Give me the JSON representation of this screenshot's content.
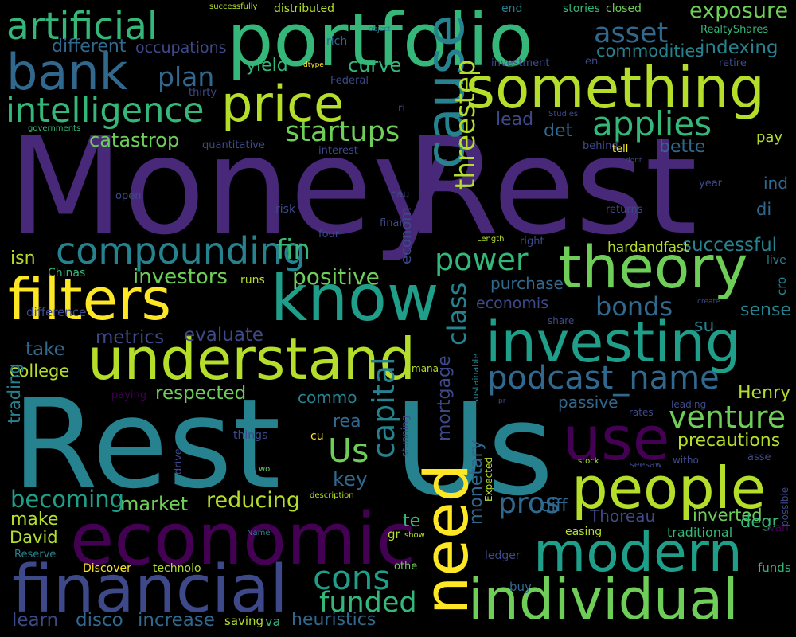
{
  "background": "#000000",
  "palette": [
    "#440154",
    "#482878",
    "#3e4989",
    "#31688e",
    "#26828e",
    "#1f9e89",
    "#35b779",
    "#6ece58",
    "#b5de2b",
    "#fde725"
  ],
  "words": [
    {
      "text": "Money",
      "c": "#482878"
    },
    {
      "text": "Rest",
      "c": "#482878"
    },
    {
      "text": "Rest",
      "c": "#26828e"
    },
    {
      "text": "Us",
      "c": "#26828e"
    },
    {
      "text": "portfolio",
      "c": "#35b779"
    },
    {
      "text": "economic",
      "c": "#440154"
    },
    {
      "text": "financial",
      "c": "#3e4989"
    },
    {
      "text": "investing",
      "c": "#1f9e89"
    },
    {
      "text": "understand",
      "c": "#b5de2b"
    },
    {
      "text": "know",
      "c": "#1f9e89"
    },
    {
      "text": "filters",
      "c": "#fde725"
    },
    {
      "text": "theory",
      "c": "#6ece58"
    },
    {
      "text": "individual",
      "c": "#6ece58"
    },
    {
      "text": "people",
      "c": "#b5de2b"
    },
    {
      "text": "modern",
      "c": "#1f9e89"
    },
    {
      "text": "use",
      "c": "#440154"
    },
    {
      "text": "something",
      "c": "#b5de2b"
    },
    {
      "text": "price",
      "c": "#b5de2b"
    },
    {
      "text": "bank",
      "c": "#31688e"
    },
    {
      "text": "artificial",
      "c": "#35b779"
    },
    {
      "text": "intelligence",
      "c": "#35b779"
    },
    {
      "text": "compounding",
      "c": "#26828e"
    },
    {
      "text": "cause",
      "c": "#26828e"
    },
    {
      "text": "need",
      "c": "#fde725"
    },
    {
      "text": "podcast_name",
      "c": "#31688e"
    },
    {
      "text": "applies",
      "c": "#35b779"
    },
    {
      "text": "asset",
      "c": "#31688e"
    },
    {
      "text": "exposure",
      "c": "#6ece58"
    },
    {
      "text": "capital",
      "c": "#26828e"
    },
    {
      "text": "power",
      "c": "#35b779"
    },
    {
      "text": "venture",
      "c": "#6ece58"
    },
    {
      "text": "cons",
      "c": "#1f9e89"
    },
    {
      "text": "pros",
      "c": "#31688e"
    },
    {
      "text": "bonds",
      "c": "#31688e"
    },
    {
      "text": "startups",
      "c": "#6ece58"
    },
    {
      "text": "threestep",
      "c": "#b5de2b"
    },
    {
      "text": "class",
      "c": "#26828e"
    },
    {
      "text": "funded",
      "c": "#35b779"
    },
    {
      "text": "Us",
      "c": "#6ece58"
    },
    {
      "text": "fin",
      "c": "#35b779"
    },
    {
      "text": "positive",
      "c": "#6ece58"
    },
    {
      "text": "investors",
      "c": "#6ece58"
    },
    {
      "text": "plan",
      "c": "#31688e"
    },
    {
      "text": "curve",
      "c": "#35b779"
    },
    {
      "text": "yield",
      "c": "#35b779"
    },
    {
      "text": "catastrop",
      "c": "#6ece58"
    },
    {
      "text": "lead",
      "c": "#3e4989"
    },
    {
      "text": "det",
      "c": "#31688e"
    },
    {
      "text": "bette",
      "c": "#31688e"
    },
    {
      "text": "indexing",
      "c": "#26828e"
    },
    {
      "text": "commodities",
      "c": "#26828e"
    },
    {
      "text": "occupations",
      "c": "#3e4989"
    },
    {
      "text": "different",
      "c": "#31688e"
    },
    {
      "text": "successful",
      "c": "#26828e"
    },
    {
      "text": "purchase",
      "c": "#31688e"
    },
    {
      "text": "economis",
      "c": "#3e4989"
    },
    {
      "text": "sense",
      "c": "#26828e"
    },
    {
      "text": "Henry",
      "c": "#b5de2b"
    },
    {
      "text": "precautions",
      "c": "#b5de2b"
    },
    {
      "text": "inverted",
      "c": "#6ece58"
    },
    {
      "text": "Thoreau",
      "c": "#3e4989"
    },
    {
      "text": "passive",
      "c": "#31688e"
    },
    {
      "text": "reducing",
      "c": "#b5de2b"
    },
    {
      "text": "market",
      "c": "#6ece58"
    },
    {
      "text": "becoming",
      "c": "#1f9e89"
    },
    {
      "text": "key",
      "c": "#31688e"
    },
    {
      "text": "respected",
      "c": "#6ece58"
    },
    {
      "text": "evaluate",
      "c": "#3e4989"
    },
    {
      "text": "metrics",
      "c": "#3e4989"
    },
    {
      "text": "take",
      "c": "#31688e"
    },
    {
      "text": "college",
      "c": "#b5de2b"
    },
    {
      "text": "isn",
      "c": "#b5de2b"
    },
    {
      "text": "make",
      "c": "#b5de2b"
    },
    {
      "text": "David",
      "c": "#b5de2b"
    },
    {
      "text": "learn",
      "c": "#3e4989"
    },
    {
      "text": "disco",
      "c": "#31688e"
    },
    {
      "text": "increase",
      "c": "#31688e"
    },
    {
      "text": "heuristics",
      "c": "#31688e"
    },
    {
      "text": "mortgage",
      "c": "#3e4989"
    },
    {
      "text": "monetary",
      "c": "#31688e"
    },
    {
      "text": "diff",
      "c": "#31688e"
    },
    {
      "text": "degr",
      "c": "#35b779"
    },
    {
      "text": "te",
      "c": "#35b779"
    },
    {
      "text": "rea",
      "c": "#31688e"
    },
    {
      "text": "commo",
      "c": "#26828e"
    },
    {
      "text": "trading",
      "c": "#26828e"
    },
    {
      "text": "econom",
      "c": "#3e4989"
    },
    {
      "text": "ind",
      "c": "#31688e"
    },
    {
      "text": "di",
      "c": "#31688e"
    },
    {
      "text": "su",
      "c": "#26828e"
    },
    {
      "text": "pay",
      "c": "#b5de2b"
    },
    {
      "text": "hardandfast",
      "c": "#b5de2b"
    },
    {
      "text": "live",
      "c": "#26828e"
    },
    {
      "text": "cro",
      "c": "#26828e"
    },
    {
      "text": "traditional",
      "c": "#35b779"
    },
    {
      "text": "easing",
      "c": "#b5de2b"
    },
    {
      "text": "wan",
      "c": "#440154"
    },
    {
      "text": "funds",
      "c": "#35b779"
    },
    {
      "text": "buy",
      "c": "#31688e"
    },
    {
      "text": "ledger",
      "c": "#3e4989"
    },
    {
      "text": "Discover",
      "c": "#fde725"
    },
    {
      "text": "technolo",
      "c": "#b5de2b"
    },
    {
      "text": "saving",
      "c": "#b5de2b"
    },
    {
      "text": "va",
      "c": "#35b779"
    },
    {
      "text": "Reserve",
      "c": "#26828e"
    },
    {
      "text": "othe",
      "c": "#6ece58"
    },
    {
      "text": "gr",
      "c": "#b5de2b"
    },
    {
      "text": "show",
      "c": "#b5de2b"
    },
    {
      "text": "description",
      "c": "#b5de2b"
    },
    {
      "text": "Name",
      "c": "#26828e"
    },
    {
      "text": "wo",
      "c": "#6ece58"
    },
    {
      "text": "drive",
      "c": "#3e4989"
    },
    {
      "text": "cu",
      "c": "#fde725"
    },
    {
      "text": "things",
      "c": "#3e4989"
    },
    {
      "text": "paying",
      "c": "#440154"
    },
    {
      "text": "difference",
      "c": "#3e4989"
    },
    {
      "text": "runs",
      "c": "#b5de2b"
    },
    {
      "text": "Chinas",
      "c": "#35b779"
    },
    {
      "text": "successfully",
      "c": "#b5de2b"
    },
    {
      "text": "distributed",
      "c": "#b5de2b"
    },
    {
      "text": "rich",
      "c": "#31688e"
    },
    {
      "text": "dtype",
      "c": "#fde725"
    },
    {
      "text": "object",
      "c": "#26828e"
    },
    {
      "text": "end",
      "c": "#26828e"
    },
    {
      "text": "stories",
      "c": "#35b779"
    },
    {
      "text": "closed",
      "c": "#6ece58"
    },
    {
      "text": "RealtyShares",
      "c": "#35b779"
    },
    {
      "text": "retire",
      "c": "#3e4989"
    },
    {
      "text": "investment",
      "c": "#3e4989"
    },
    {
      "text": "en",
      "c": "#3e4989"
    },
    {
      "text": "Federal",
      "c": "#3e4989"
    },
    {
      "text": "thirty",
      "c": "#3e4989"
    },
    {
      "text": "ri",
      "c": "#3e4989"
    },
    {
      "text": "governments",
      "c": "#35b779"
    },
    {
      "text": "quantitative",
      "c": "#3e4989"
    },
    {
      "text": "interest",
      "c": "#3e4989"
    },
    {
      "text": "Studies",
      "c": "#3e4989"
    },
    {
      "text": "behind",
      "c": "#3e4989"
    },
    {
      "text": "tell",
      "c": "#fde725"
    },
    {
      "text": "dont",
      "c": "#3e4989"
    },
    {
      "text": "year",
      "c": "#3e4989"
    },
    {
      "text": "open",
      "c": "#3e4989"
    },
    {
      "text": "risk",
      "c": "#3e4989"
    },
    {
      "text": "cau",
      "c": "#3e4989"
    },
    {
      "text": "returns",
      "c": "#3e4989"
    },
    {
      "text": "finan",
      "c": "#3e4989"
    },
    {
      "text": "four",
      "c": "#3e4989"
    },
    {
      "text": "Length",
      "c": "#b5de2b"
    },
    {
      "text": "right",
      "c": "#3e4989"
    },
    {
      "text": "create",
      "c": "#3e4989"
    },
    {
      "text": "share",
      "c": "#3e4989"
    },
    {
      "text": "sustainable",
      "c": "#26828e"
    },
    {
      "text": "mana",
      "c": "#b5de2b"
    },
    {
      "text": "pr",
      "c": "#3e4989"
    },
    {
      "text": "rates",
      "c": "#3e4989"
    },
    {
      "text": "leading",
      "c": "#3e4989"
    },
    {
      "text": "stunning",
      "c": "#3e4989"
    },
    {
      "text": "Expected",
      "c": "#b5de2b"
    },
    {
      "text": "stock",
      "c": "#b5de2b"
    },
    {
      "text": "seesaw",
      "c": "#3e4989"
    },
    {
      "text": "witho",
      "c": "#3e4989"
    },
    {
      "text": "asse",
      "c": "#3e4989"
    },
    {
      "text": "possible",
      "c": "#3e4989"
    }
  ]
}
